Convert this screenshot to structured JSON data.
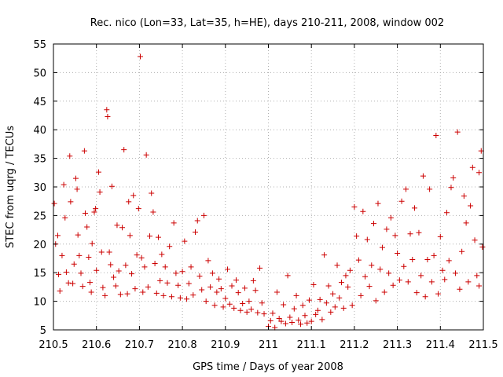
{
  "chart_data": {
    "type": "scatter",
    "title": "Rec. nico (Lon=33, Lat=35, h=HE), days 210-211, 2008, window 002",
    "xlabel": "GPS time / Days of year 2008",
    "ylabel": "STEC from uqrg / TECUs",
    "xlim": [
      210.5,
      211.5
    ],
    "ylim": [
      5,
      55
    ],
    "xticks": [
      210.5,
      210.6,
      210.7,
      210.8,
      210.9,
      211,
      211.1,
      211.2,
      211.3,
      211.4,
      211.5
    ],
    "xtick_labels": [
      "210.5",
      "210.6",
      "210.7",
      "210.8",
      "210.9",
      "211",
      "211.1",
      "211.2",
      "211.3",
      "211.4",
      "211.5"
    ],
    "yticks": [
      5,
      10,
      15,
      20,
      25,
      30,
      35,
      40,
      45,
      50,
      55
    ],
    "ytick_labels": [
      "5",
      "10",
      "15",
      "20",
      "25",
      "30",
      "35",
      "40",
      "45",
      "50",
      "55"
    ],
    "grid": true,
    "marker": "plus",
    "color": "#cc0000",
    "series": [
      {
        "points": [
          [
            210.502,
            27.1
          ],
          [
            210.505,
            20.0
          ],
          [
            210.51,
            21.5
          ],
          [
            210.512,
            14.7
          ],
          [
            210.515,
            11.8
          ],
          [
            210.52,
            18.0
          ],
          [
            210.524,
            30.4
          ],
          [
            210.527,
            24.6
          ],
          [
            210.53,
            15.1
          ],
          [
            210.535,
            13.2
          ],
          [
            210.538,
            35.4
          ],
          [
            210.54,
            27.4
          ],
          [
            210.545,
            13.1
          ],
          [
            210.548,
            16.5
          ],
          [
            210.552,
            31.5
          ],
          [
            210.555,
            29.6
          ],
          [
            210.557,
            21.6
          ],
          [
            210.56,
            18.0
          ],
          [
            210.564,
            14.9
          ],
          [
            210.568,
            12.6
          ],
          [
            210.572,
            36.3
          ],
          [
            210.574,
            25.4
          ],
          [
            210.578,
            23.0
          ],
          [
            210.582,
            17.7
          ],
          [
            210.585,
            13.3
          ],
          [
            210.588,
            11.6
          ],
          [
            210.59,
            20.1
          ],
          [
            210.595,
            25.6
          ],
          [
            210.598,
            26.2
          ],
          [
            210.6,
            15.4
          ],
          [
            210.605,
            32.6
          ],
          [
            210.608,
            29.1
          ],
          [
            210.612,
            18.6
          ],
          [
            210.615,
            12.4
          ],
          [
            210.62,
            11.0
          ],
          [
            210.624,
            43.5
          ],
          [
            210.626,
            42.3
          ],
          [
            210.63,
            18.6
          ],
          [
            210.633,
            16.4
          ],
          [
            210.636,
            30.1
          ],
          [
            210.64,
            14.2
          ],
          [
            210.645,
            12.7
          ],
          [
            210.648,
            23.3
          ],
          [
            210.652,
            15.3
          ],
          [
            210.656,
            11.2
          ],
          [
            210.66,
            22.9
          ],
          [
            210.664,
            36.5
          ],
          [
            210.668,
            16.3
          ],
          [
            210.672,
            11.3
          ],
          [
            210.675,
            27.4
          ],
          [
            210.678,
            21.5
          ],
          [
            210.682,
            14.8
          ],
          [
            210.686,
            28.5
          ],
          [
            210.69,
            12.2
          ],
          [
            210.694,
            18.1
          ],
          [
            210.698,
            26.2
          ],
          [
            210.702,
            52.8
          ],
          [
            210.705,
            17.6
          ],
          [
            210.708,
            11.6
          ],
          [
            210.712,
            16.0
          ],
          [
            210.716,
            35.6
          ],
          [
            210.72,
            12.5
          ],
          [
            210.724,
            21.4
          ],
          [
            210.728,
            28.9
          ],
          [
            210.732,
            25.6
          ],
          [
            210.736,
            16.6
          ],
          [
            210.74,
            11.4
          ],
          [
            210.744,
            21.2
          ],
          [
            210.748,
            13.6
          ],
          [
            210.752,
            18.2
          ],
          [
            210.756,
            11.0
          ],
          [
            210.76,
            16.0
          ],
          [
            210.765,
            13.2
          ],
          [
            210.77,
            19.6
          ],
          [
            210.775,
            10.8
          ],
          [
            210.78,
            23.7
          ],
          [
            210.785,
            14.9
          ],
          [
            210.79,
            12.8
          ],
          [
            210.795,
            10.6
          ],
          [
            210.8,
            15.2
          ],
          [
            210.805,
            20.5
          ],
          [
            210.81,
            10.4
          ],
          [
            210.815,
            13.1
          ],
          [
            210.82,
            16.0
          ],
          [
            210.825,
            11.1
          ],
          [
            210.83,
            22.1
          ],
          [
            210.835,
            24.1
          ],
          [
            210.84,
            14.4
          ],
          [
            210.845,
            12.0
          ],
          [
            210.85,
            25.0
          ],
          [
            210.855,
            10.0
          ],
          [
            210.86,
            17.1
          ],
          [
            210.865,
            12.5
          ],
          [
            210.87,
            14.9
          ],
          [
            210.875,
            9.3
          ],
          [
            210.88,
            11.6
          ],
          [
            210.885,
            13.9
          ],
          [
            210.89,
            12.2
          ],
          [
            210.895,
            9.0
          ],
          [
            210.9,
            10.5
          ],
          [
            210.905,
            15.6
          ],
          [
            210.91,
            9.5
          ],
          [
            210.915,
            12.7
          ],
          [
            210.92,
            8.8
          ],
          [
            210.925,
            13.7
          ],
          [
            210.93,
            11.5
          ],
          [
            210.935,
            8.4
          ],
          [
            210.94,
            9.6
          ],
          [
            210.945,
            12.3
          ],
          [
            210.95,
            8.1
          ],
          [
            210.955,
            10.0
          ],
          [
            210.96,
            8.6
          ],
          [
            210.965,
            13.6
          ],
          [
            210.97,
            11.9
          ],
          [
            210.975,
            8.0
          ],
          [
            210.98,
            15.8
          ],
          [
            210.985,
            9.7
          ],
          [
            210.99,
            7.8
          ],
          [
            211.0,
            5.6
          ],
          [
            211.005,
            6.6
          ],
          [
            211.01,
            7.9
          ],
          [
            211.015,
            5.4
          ],
          [
            211.02,
            11.6
          ],
          [
            211.025,
            7.0
          ],
          [
            211.03,
            6.5
          ],
          [
            211.035,
            9.4
          ],
          [
            211.04,
            6.1
          ],
          [
            211.045,
            14.5
          ],
          [
            211.05,
            7.2
          ],
          [
            211.055,
            6.3
          ],
          [
            211.06,
            8.7
          ],
          [
            211.065,
            11.0
          ],
          [
            211.07,
            6.7
          ],
          [
            211.075,
            6.0
          ],
          [
            211.08,
            9.3
          ],
          [
            211.085,
            7.5
          ],
          [
            211.09,
            6.2
          ],
          [
            211.095,
            10.2
          ],
          [
            211.1,
            6.5
          ],
          [
            211.105,
            12.9
          ],
          [
            211.11,
            7.7
          ],
          [
            211.115,
            8.4
          ],
          [
            211.12,
            10.3
          ],
          [
            211.125,
            6.8
          ],
          [
            211.13,
            18.1
          ],
          [
            211.135,
            9.7
          ],
          [
            211.14,
            12.7
          ],
          [
            211.145,
            8.1
          ],
          [
            211.15,
            11.3
          ],
          [
            211.155,
            9.0
          ],
          [
            211.16,
            16.3
          ],
          [
            211.165,
            10.6
          ],
          [
            211.17,
            13.3
          ],
          [
            211.175,
            8.8
          ],
          [
            211.18,
            14.5
          ],
          [
            211.185,
            12.5
          ],
          [
            211.19,
            15.4
          ],
          [
            211.195,
            9.3
          ],
          [
            211.2,
            26.5
          ],
          [
            211.205,
            21.4
          ],
          [
            211.21,
            17.2
          ],
          [
            211.215,
            11.0
          ],
          [
            211.22,
            25.7
          ],
          [
            211.225,
            14.3
          ],
          [
            211.23,
            20.8
          ],
          [
            211.235,
            12.6
          ],
          [
            211.24,
            16.3
          ],
          [
            211.245,
            23.6
          ],
          [
            211.25,
            10.1
          ],
          [
            211.255,
            27.1
          ],
          [
            211.26,
            15.6
          ],
          [
            211.265,
            19.4
          ],
          [
            211.27,
            11.6
          ],
          [
            211.275,
            22.6
          ],
          [
            211.28,
            14.9
          ],
          [
            211.285,
            24.6
          ],
          [
            211.29,
            12.8
          ],
          [
            211.295,
            21.5
          ],
          [
            211.3,
            18.4
          ],
          [
            211.305,
            13.7
          ],
          [
            211.31,
            27.5
          ],
          [
            211.315,
            16.1
          ],
          [
            211.32,
            29.6
          ],
          [
            211.325,
            13.4
          ],
          [
            211.33,
            21.8
          ],
          [
            211.335,
            17.3
          ],
          [
            211.34,
            26.3
          ],
          [
            211.345,
            11.5
          ],
          [
            211.35,
            22.0
          ],
          [
            211.355,
            14.5
          ],
          [
            211.36,
            31.9
          ],
          [
            211.365,
            10.8
          ],
          [
            211.37,
            17.3
          ],
          [
            211.375,
            29.6
          ],
          [
            211.38,
            13.4
          ],
          [
            211.385,
            18.0
          ],
          [
            211.39,
            39.0
          ],
          [
            211.395,
            11.3
          ],
          [
            211.4,
            21.3
          ],
          [
            211.405,
            15.4
          ],
          [
            211.41,
            13.8
          ],
          [
            211.415,
            25.5
          ],
          [
            211.42,
            17.1
          ],
          [
            211.425,
            29.9
          ],
          [
            211.43,
            31.6
          ],
          [
            211.435,
            14.9
          ],
          [
            211.44,
            39.6
          ],
          [
            211.445,
            12.1
          ],
          [
            211.45,
            18.7
          ],
          [
            211.455,
            28.4
          ],
          [
            211.46,
            23.7
          ],
          [
            211.465,
            13.4
          ],
          [
            211.47,
            26.7
          ],
          [
            211.475,
            33.4
          ],
          [
            211.48,
            20.7
          ],
          [
            211.485,
            14.5
          ],
          [
            211.49,
            32.5
          ],
          [
            211.495,
            36.3
          ],
          [
            211.498,
            19.5
          ],
          [
            211.49,
            12.7
          ]
        ]
      }
    ]
  }
}
